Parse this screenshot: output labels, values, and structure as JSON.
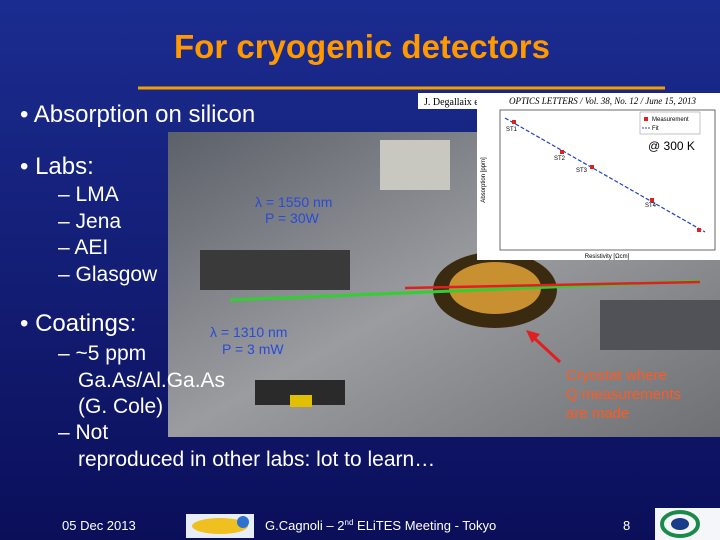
{
  "slide": {
    "title": "For cryogenic detectors",
    "bullets": [
      {
        "text": "Absorption on silicon"
      },
      {
        "text": "Labs:",
        "items": [
          "LMA",
          "Jena",
          "AEI",
          "Glasgow"
        ]
      },
      {
        "text": "Coatings:",
        "items": [
          "~5 ppm",
          "Ga.As/Al.Ga.As",
          "(G. Cole)",
          "Not",
          "reproduced in other labs: lot to learn…"
        ]
      }
    ],
    "figure": {
      "citation": "J. Degallaix et al.,",
      "journal": "OPTICS LETTERS / Vol. 38, No. 12 / June 15, 2013",
      "temperature": "@ 300 K",
      "legend": [
        "Measurement",
        "Fit"
      ],
      "samples": [
        "ST1",
        "ST2",
        "ST3",
        "ST4"
      ],
      "y_label": "Absorption [ppm]",
      "x_label": "Resistivity [Ωcm]"
    },
    "annotations": {
      "laser1": [
        "λ = 1550 nm",
        "P = 30W"
      ],
      "laser2": [
        "λ = 1310 nm",
        "P = 3 mW"
      ],
      "cryostat": [
        "Cryostat where",
        "Q measurements",
        "are made"
      ]
    },
    "footer": {
      "date": "05 Dec 2013",
      "author": [
        "G.Cagnoli – 2",
        "nd",
        " ELiTES Meeting - Tokyo"
      ],
      "page": "8"
    }
  }
}
